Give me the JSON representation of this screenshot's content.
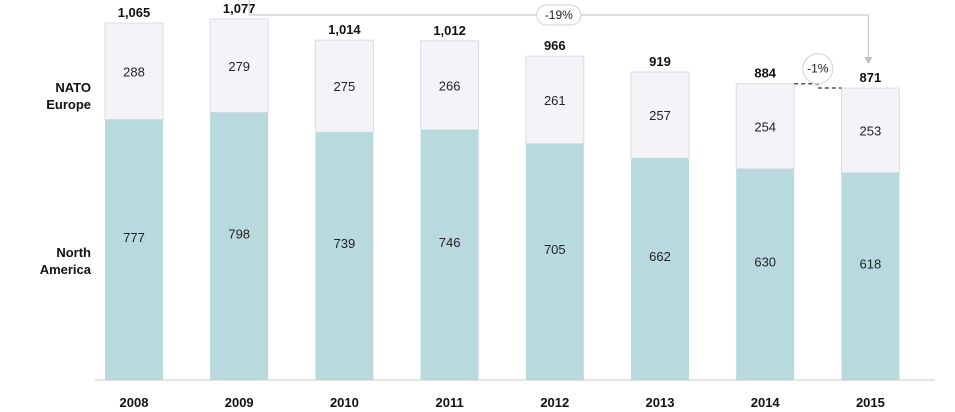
{
  "chart_data": {
    "type": "bar",
    "stacked": true,
    "title": "",
    "xlabel": "",
    "ylabel": "",
    "categories": [
      "2008",
      "2009",
      "2010",
      "2011",
      "2012",
      "2013",
      "2014",
      "2015"
    ],
    "series": [
      {
        "name": "North America",
        "values": [
          777,
          798,
          739,
          746,
          705,
          662,
          630,
          618
        ],
        "color": "#b8dadf"
      },
      {
        "name": "NATO Europe",
        "values": [
          288,
          279,
          275,
          266,
          261,
          257,
          254,
          253
        ],
        "color": "#f3f3f8"
      }
    ],
    "totals": [
      "1,065",
      "1,077",
      "1,014",
      "1,012",
      "966",
      "919",
      "884",
      "871"
    ],
    "segment_labels": {
      "north_america": [
        "777",
        "798",
        "739",
        "746",
        "705",
        "662",
        "630",
        "618"
      ],
      "nato_europe": [
        "288",
        "279",
        "275",
        "266",
        "261",
        "257",
        "254",
        "253"
      ]
    },
    "row_labels": {
      "nato_europe": [
        "NATO",
        "Europe"
      ],
      "north_america": [
        "North",
        "America"
      ]
    },
    "ylim": [
      0,
      1077
    ],
    "grid": false,
    "legend": "none",
    "annotations": [
      {
        "text": "-19%",
        "from": "2009",
        "to": "2015"
      },
      {
        "text": "-1%",
        "from": "2014",
        "to": "2015"
      }
    ],
    "colors": {
      "north_america": "#b8dadf",
      "nato_europe": "#f3f3f8",
      "bar_border": "#dcdce6",
      "axis": "#c8c8c8",
      "callout_line": "#c0c0c0",
      "callout_badge_border": "#d0d0d0",
      "dashed": "#555555"
    }
  }
}
